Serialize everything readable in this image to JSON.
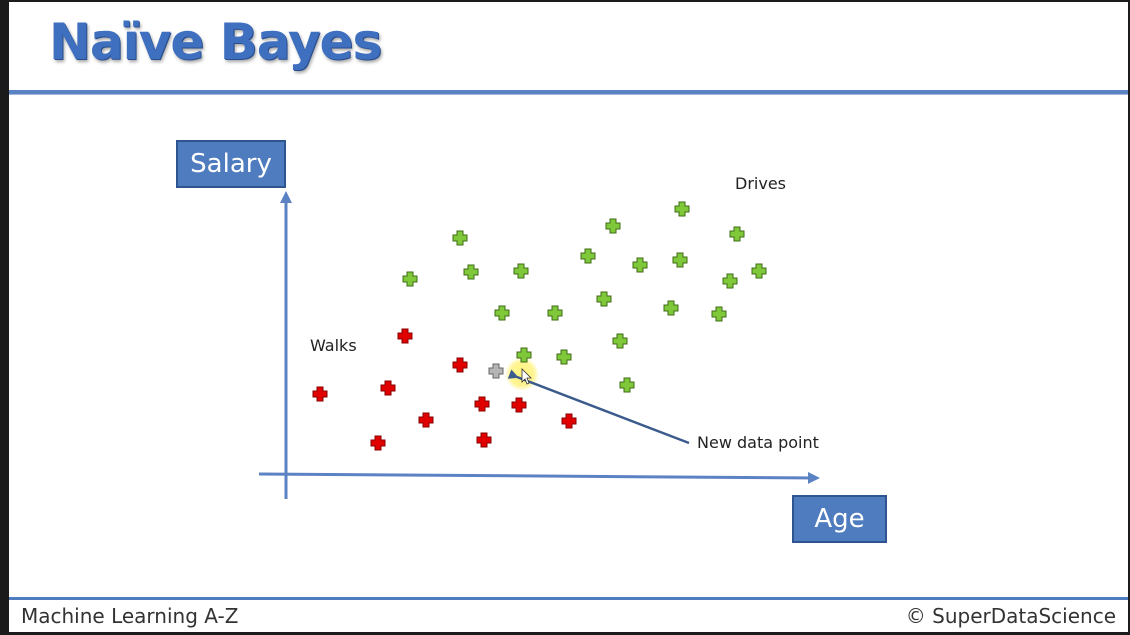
{
  "slide": {
    "title": "Naïve Bayes",
    "footer_left": "Machine Learning A-Z",
    "footer_right": "© SuperDataScience"
  },
  "chart_data": {
    "type": "scatter",
    "xlabel": "Age",
    "ylabel": "Salary",
    "grid": false,
    "annotations": [
      "Drives",
      "Walks",
      "New data point"
    ],
    "colors": {
      "drives": "#7ec83a",
      "walks": "#e00000",
      "new": "#b5b5b5",
      "axis": "#5b82c2",
      "highlight": "#ffef3a"
    },
    "series": [
      {
        "name": "Drives",
        "points": [
          [
            401,
            277
          ],
          [
            451,
            236
          ],
          [
            462,
            270
          ],
          [
            512,
            269
          ],
          [
            493,
            311
          ],
          [
            546,
            311
          ],
          [
            579,
            254
          ],
          [
            604,
            224
          ],
          [
            595,
            297
          ],
          [
            631,
            263
          ],
          [
            671,
            258
          ],
          [
            673,
            207
          ],
          [
            662,
            306
          ],
          [
            728,
            232
          ],
          [
            721,
            279
          ],
          [
            750,
            269
          ],
          [
            710,
            312
          ],
          [
            611,
            339
          ],
          [
            555,
            355
          ],
          [
            515,
            353
          ],
          [
            618,
            383
          ]
        ]
      },
      {
        "name": "Walks",
        "points": [
          [
            396,
            334
          ],
          [
            451,
            363
          ],
          [
            379,
            386
          ],
          [
            311,
            392
          ],
          [
            417,
            418
          ],
          [
            473,
            402
          ],
          [
            510,
            403
          ],
          [
            475,
            438
          ],
          [
            369,
            441
          ],
          [
            560,
            419
          ]
        ]
      },
      {
        "name": "New data point",
        "points": [
          [
            487,
            369
          ]
        ]
      }
    ]
  }
}
